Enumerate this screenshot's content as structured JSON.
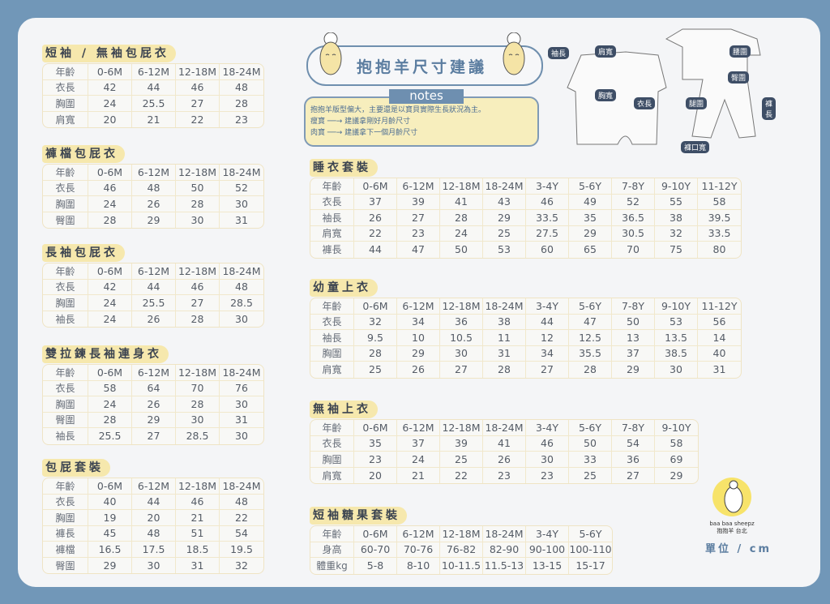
{
  "header": {
    "title": "抱抱羊尺寸建議",
    "notes_label": "notes",
    "notes": [
      "抱抱羊版型偏大，主要還是以寶貝實際生長狀況為主。",
      "瘦寶 ──→ 建議拿剛好月齡尺寸",
      "肉寶 ──→ 建議拿下一個月齡尺寸"
    ]
  },
  "diagram_labels": [
    "袖長",
    "肩寬",
    "胸寬",
    "衣長",
    "腰圍",
    "臀圍",
    "腿圍",
    "褲長",
    "褲口寬"
  ],
  "brand": {
    "logo_text": "baa baa sheepz",
    "logo_sub": "抱抱羊 台北"
  },
  "unit": "單位 / cm",
  "colors": {
    "frame": "#7197b8",
    "title_bg": "#f6e8ad",
    "accent": "#5b7da0"
  },
  "tables": [
    {
      "title": "短袖 / 無袖包屁衣",
      "rows": [
        [
          "年齡",
          "0-6M",
          "6-12M",
          "12-18M",
          "18-24M"
        ],
        [
          "衣長",
          "42",
          "44",
          "46",
          "48"
        ],
        [
          "胸圍",
          "24",
          "25.5",
          "27",
          "28"
        ],
        [
          "肩寬",
          "20",
          "21",
          "22",
          "23"
        ]
      ]
    },
    {
      "title": "褲檔包屁衣",
      "rows": [
        [
          "年齡",
          "0-6M",
          "6-12M",
          "12-18M",
          "18-24M"
        ],
        [
          "衣長",
          "46",
          "48",
          "50",
          "52"
        ],
        [
          "胸圍",
          "24",
          "26",
          "28",
          "30"
        ],
        [
          "臀圍",
          "28",
          "29",
          "30",
          "31"
        ]
      ]
    },
    {
      "title": "長袖包屁衣",
      "rows": [
        [
          "年齡",
          "0-6M",
          "6-12M",
          "12-18M",
          "18-24M"
        ],
        [
          "衣長",
          "42",
          "44",
          "46",
          "48"
        ],
        [
          "胸圍",
          "24",
          "25.5",
          "27",
          "28.5"
        ],
        [
          "袖長",
          "24",
          "26",
          "28",
          "30"
        ]
      ]
    },
    {
      "title": "雙拉鍊長袖連身衣",
      "rows": [
        [
          "年齡",
          "0-6M",
          "6-12M",
          "12-18M",
          "18-24M"
        ],
        [
          "衣長",
          "58",
          "64",
          "70",
          "76"
        ],
        [
          "胸圍",
          "24",
          "26",
          "28",
          "30"
        ],
        [
          "臀圍",
          "28",
          "29",
          "30",
          "31"
        ],
        [
          "袖長",
          "25.5",
          "27",
          "28.5",
          "30"
        ]
      ]
    },
    {
      "title": "包屁套裝",
      "rows": [
        [
          "年齡",
          "0-6M",
          "6-12M",
          "12-18M",
          "18-24M"
        ],
        [
          "衣長",
          "40",
          "44",
          "46",
          "48"
        ],
        [
          "胸圍",
          "19",
          "20",
          "21",
          "22"
        ],
        [
          "褲長",
          "45",
          "48",
          "51",
          "54"
        ],
        [
          "褲檔",
          "16.5",
          "17.5",
          "18.5",
          "19.5"
        ],
        [
          "臀圍",
          "29",
          "30",
          "31",
          "32"
        ]
      ]
    },
    {
      "title": "睡衣套裝",
      "rows": [
        [
          "年齡",
          "0-6M",
          "6-12M",
          "12-18M",
          "18-24M",
          "3-4Y",
          "5-6Y",
          "7-8Y",
          "9-10Y",
          "11-12Y"
        ],
        [
          "衣長",
          "37",
          "39",
          "41",
          "43",
          "46",
          "49",
          "52",
          "55",
          "58"
        ],
        [
          "袖長",
          "26",
          "27",
          "28",
          "29",
          "33.5",
          "35",
          "36.5",
          "38",
          "39.5"
        ],
        [
          "肩寬",
          "22",
          "23",
          "24",
          "25",
          "27.5",
          "29",
          "30.5",
          "32",
          "33.5"
        ],
        [
          "褲長",
          "44",
          "47",
          "50",
          "53",
          "60",
          "65",
          "70",
          "75",
          "80"
        ]
      ]
    },
    {
      "title": "幼童上衣",
      "rows": [
        [
          "年齡",
          "0-6M",
          "6-12M",
          "12-18M",
          "18-24M",
          "3-4Y",
          "5-6Y",
          "7-8Y",
          "9-10Y",
          "11-12Y"
        ],
        [
          "衣長",
          "32",
          "34",
          "36",
          "38",
          "44",
          "47",
          "50",
          "53",
          "56"
        ],
        [
          "袖長",
          "9.5",
          "10",
          "10.5",
          "11",
          "12",
          "12.5",
          "13",
          "13.5",
          "14"
        ],
        [
          "胸圍",
          "28",
          "29",
          "30",
          "31",
          "34",
          "35.5",
          "37",
          "38.5",
          "40"
        ],
        [
          "肩寬",
          "25",
          "26",
          "27",
          "28",
          "27",
          "28",
          "29",
          "30",
          "31"
        ]
      ]
    },
    {
      "title": "無袖上衣",
      "rows": [
        [
          "年齡",
          "0-6M",
          "6-12M",
          "12-18M",
          "18-24M",
          "3-4Y",
          "5-6Y",
          "7-8Y",
          "9-10Y"
        ],
        [
          "衣長",
          "35",
          "37",
          "39",
          "41",
          "46",
          "50",
          "54",
          "58"
        ],
        [
          "胸圍",
          "23",
          "24",
          "25",
          "26",
          "30",
          "33",
          "36",
          "69"
        ],
        [
          "肩寬",
          "20",
          "21",
          "22",
          "23",
          "23",
          "25",
          "27",
          "29"
        ]
      ]
    },
    {
      "title": "短袖糖果套裝",
      "rows": [
        [
          "年齡",
          "0-6M",
          "6-12M",
          "12-18M",
          "18-24M",
          "3-4Y",
          "5-6Y"
        ],
        [
          "身高",
          "60-70",
          "70-76",
          "76-82",
          "82-90",
          "90-100",
          "100-110"
        ],
        [
          "體重kg",
          "5-8",
          "8-10",
          "10-11.5",
          "11.5-13",
          "13-15",
          "15-17"
        ]
      ]
    }
  ]
}
